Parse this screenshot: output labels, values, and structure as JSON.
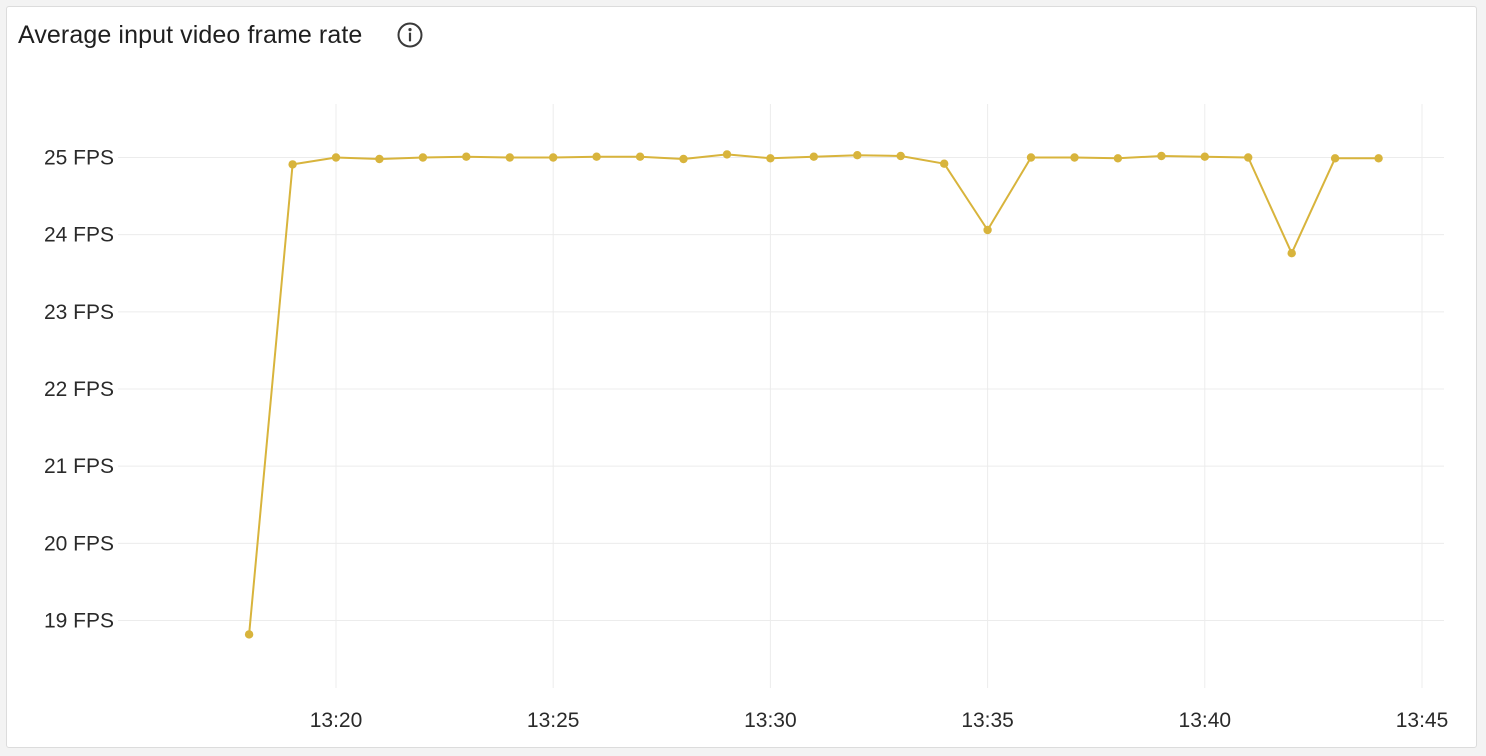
{
  "panel": {
    "title": "Average input video frame rate",
    "info_icon": "info-circle-icon"
  },
  "colors": {
    "series": "#d8b43c",
    "grid": "#ececec",
    "text": "#1f1f1f"
  },
  "chart_data": {
    "type": "line",
    "title": "Average input video frame rate",
    "xlabel": "",
    "ylabel": "",
    "x_unit": "minutes (clock time)",
    "xlim": [
      "13:16",
      "13:46"
    ],
    "ylim": [
      18.3,
      25.7
    ],
    "x_ticks": [
      "13:20",
      "13:25",
      "13:30",
      "13:35",
      "13:40",
      "13:45"
    ],
    "y_ticks": [
      "19 FPS",
      "20 FPS",
      "21 FPS",
      "22 FPS",
      "23 FPS",
      "24 FPS",
      "25 FPS"
    ],
    "grid": true,
    "legend": "none",
    "series": [
      {
        "x": [
          "13:18",
          "13:19",
          "13:20",
          "13:21",
          "13:22",
          "13:23",
          "13:24",
          "13:25",
          "13:26",
          "13:27",
          "13:28",
          "13:29",
          "13:30",
          "13:31",
          "13:32",
          "13:33",
          "13:34",
          "13:35",
          "13:36",
          "13:37",
          "13:38",
          "13:39",
          "13:40",
          "13:41",
          "13:42",
          "13:43",
          "13:44"
        ],
        "values": [
          18.82,
          24.91,
          25.0,
          24.98,
          25.0,
          25.01,
          25.0,
          25.0,
          25.01,
          25.01,
          24.98,
          25.04,
          24.99,
          25.01,
          25.03,
          25.02,
          24.92,
          24.06,
          25.0,
          25.0,
          24.99,
          25.02,
          25.01,
          25.0,
          23.76,
          24.99,
          24.99
        ]
      }
    ]
  }
}
